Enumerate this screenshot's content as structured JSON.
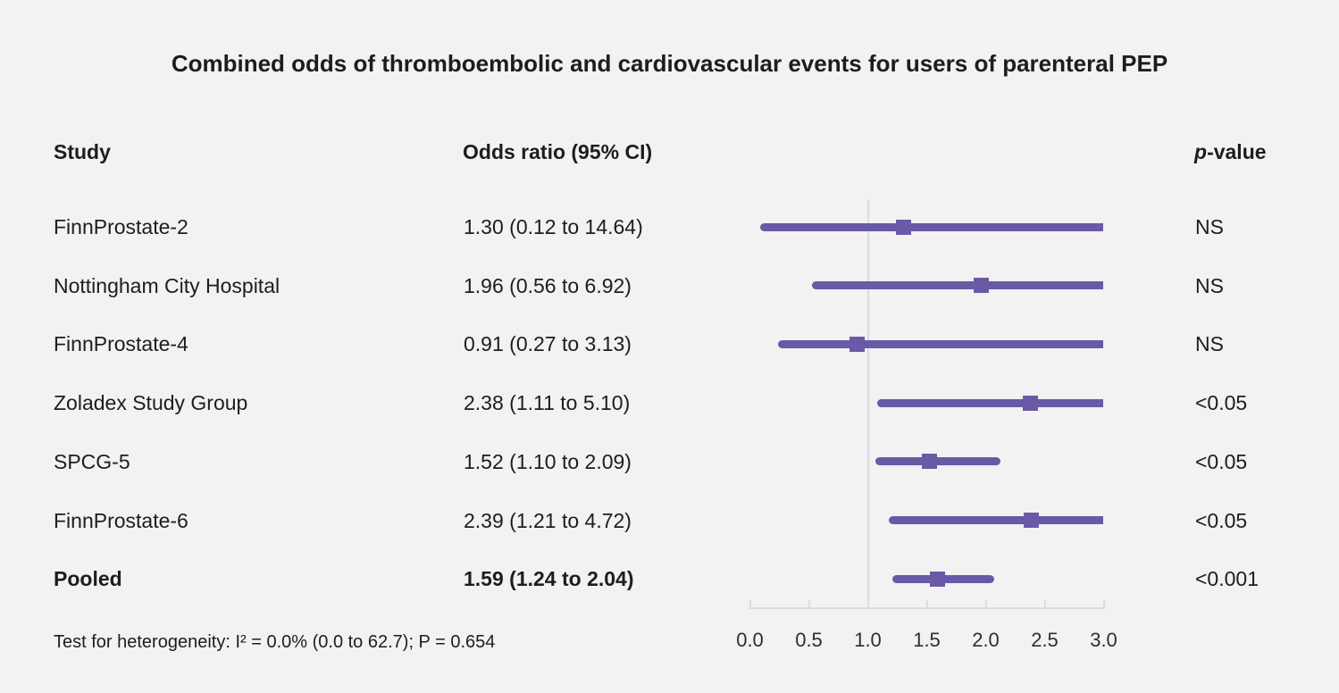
{
  "title": "Combined odds of thromboembolic and cardiovascular events for users of parenteral PEP",
  "columns": {
    "study": "Study",
    "odds_ratio": "Odds ratio (95% CI)",
    "p_italic": "p",
    "p_rest": "-value"
  },
  "footnote": "Test for heterogeneity: I² = 0.0% (0.0 to 62.7); P = 0.654",
  "colors": {
    "purple": "#6a59a7",
    "axis": "#d8dde3",
    "background": "#f2f2f2",
    "text": "#1d1d1d"
  },
  "chart_data": {
    "type": "scatter",
    "subtype": "forest-plot",
    "title": "Combined odds of thromboembolic and cardiovascular events for users of parenteral PEP",
    "xlabel": "",
    "ylabel": "",
    "xlim": [
      0.0,
      3.0
    ],
    "axis_ticks": [
      0.0,
      0.5,
      1.0,
      1.5,
      2.0,
      2.5,
      3.0
    ],
    "tick_labels": [
      "0.0",
      "0.5",
      "1.0",
      "1.5",
      "2.0",
      "2.5",
      "3.0"
    ],
    "reference_line": 1.0,
    "rows": [
      {
        "study": "FinnProstate-2",
        "or": 1.3,
        "ci_low": 0.12,
        "ci_high": 14.64,
        "or_label": "1.30 (0.12 to 14.64)",
        "p": "NS",
        "bold": false
      },
      {
        "study": "Nottingham City Hospital",
        "or": 1.96,
        "ci_low": 0.56,
        "ci_high": 6.92,
        "or_label": "1.96 (0.56 to 6.92)",
        "p": "NS",
        "bold": false
      },
      {
        "study": "FinnProstate-4",
        "or": 0.91,
        "ci_low": 0.27,
        "ci_high": 3.13,
        "or_label": "0.91 (0.27 to 3.13)",
        "p": "NS",
        "bold": false
      },
      {
        "study": "Zoladex Study Group",
        "or": 2.38,
        "ci_low": 1.11,
        "ci_high": 5.1,
        "or_label": "2.38 (1.11 to 5.10)",
        "p": "<0.05",
        "bold": false
      },
      {
        "study": "SPCG-5",
        "or": 1.52,
        "ci_low": 1.1,
        "ci_high": 2.09,
        "or_label": "1.52 (1.10 to 2.09)",
        "p": "<0.05",
        "bold": false
      },
      {
        "study": "FinnProstate-6",
        "or": 2.39,
        "ci_low": 1.21,
        "ci_high": 4.72,
        "or_label": "2.39 (1.21 to 4.72)",
        "p": "<0.05",
        "bold": false
      },
      {
        "study": "Pooled",
        "or": 1.59,
        "ci_low": 1.24,
        "ci_high": 2.04,
        "or_label": "1.59 (1.24 to 2.04)",
        "p": "<0.001",
        "bold": true
      }
    ]
  }
}
